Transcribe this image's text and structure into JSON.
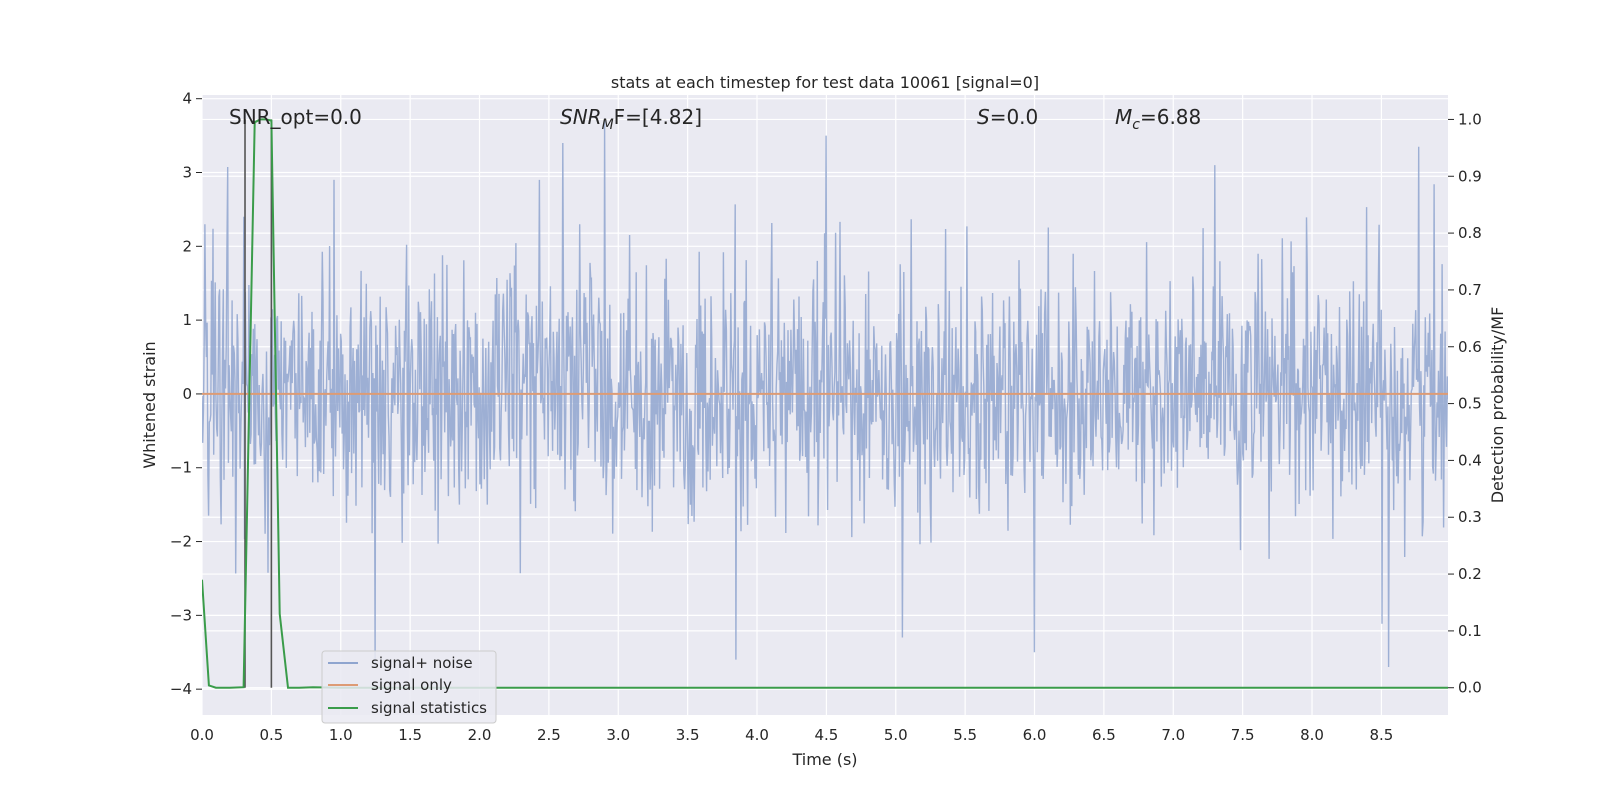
{
  "chart_data": {
    "type": "line",
    "title": "stats at each timestep for test data 10061 [signal=0]",
    "xlabel": "Time (s)",
    "ylabel": "Whitened strain",
    "y2label": "Detection probability/MF",
    "xlim": [
      0.0,
      8.98
    ],
    "ylim": [
      -4.35,
      4.05
    ],
    "y2lim": [
      -0.048,
      1.043
    ],
    "x_ticks": [
      "0.0",
      "0.5",
      "1.0",
      "1.5",
      "2.0",
      "2.5",
      "3.0",
      "3.5",
      "4.0",
      "4.5",
      "5.0",
      "5.5",
      "6.0",
      "6.5",
      "7.0",
      "7.5",
      "8.0",
      "8.5"
    ],
    "y_ticks": [
      "4",
      "3",
      "2",
      "1",
      "0",
      "−1",
      "−2",
      "−3",
      "−4"
    ],
    "y2_ticks": [
      "1.0",
      "0.9",
      "0.8",
      "0.7",
      "0.6",
      "0.5",
      "0.4",
      "0.3",
      "0.2",
      "0.1",
      "0.0"
    ],
    "grid": true,
    "legend": {
      "placement": "lower-left",
      "entries": [
        {
          "label": "signal+ noise",
          "color": "#8fa5cf"
        },
        {
          "label": "signal only",
          "color": "#dd9b75"
        },
        {
          "label": "signal statistics",
          "color": "#3a9c4a"
        }
      ]
    },
    "annotations": {
      "snr_opt": "SNR_opt=0.0",
      "snr_mf_prefix": "SNR",
      "snr_mf_sub": "M",
      "snr_mf_suffix": "F=[4.82]",
      "s_prefix": "S",
      "s_suffix": "=0.0",
      "mc_prefix": "M",
      "mc_sub": "c",
      "mc_suffix": "=6.88"
    },
    "series": [
      {
        "name": "signal+ noise",
        "color": "#8fa5cf",
        "axis": "left",
        "x_range": [
          0.0,
          8.98
        ],
        "envelope_typical": [
          -1.6,
          1.5
        ],
        "peaks": [
          [
            0.02,
            2.3
          ],
          [
            0.3,
            2.4
          ],
          [
            0.95,
            2.9
          ],
          [
            1.25,
            -3.7
          ],
          [
            2.43,
            2.9
          ],
          [
            2.6,
            3.4
          ],
          [
            2.9,
            3.7
          ],
          [
            3.85,
            -3.6
          ],
          [
            4.5,
            3.5
          ],
          [
            5.05,
            -3.3
          ],
          [
            6.0,
            -3.5
          ],
          [
            7.3,
            3.1
          ],
          [
            8.55,
            -3.7
          ],
          [
            8.77,
            3.35
          ]
        ]
      },
      {
        "name": "signal only",
        "color": "#dd9b75",
        "axis": "left",
        "x": [
          0.0,
          8.98
        ],
        "y": [
          0.0,
          0.0
        ]
      },
      {
        "name": "signal statistics",
        "color": "#3a9c4a",
        "axis": "right",
        "x": [
          0.0,
          0.05,
          0.1,
          0.2,
          0.3,
          0.38,
          0.42,
          0.46,
          0.5,
          0.56,
          0.62,
          0.7,
          0.8,
          1.0,
          2.0,
          4.0,
          6.0,
          8.0,
          8.98
        ],
        "y": [
          0.19,
          0.004,
          0.0,
          0.0,
          0.001,
          0.995,
          1.0,
          1.0,
          0.998,
          0.13,
          0.0,
          0.0,
          0.001,
          0.0,
          0.0,
          0.0,
          0.0,
          0.0,
          0.0
        ]
      }
    ],
    "vertical_lines_x": [
      0.31,
      0.5
    ]
  }
}
